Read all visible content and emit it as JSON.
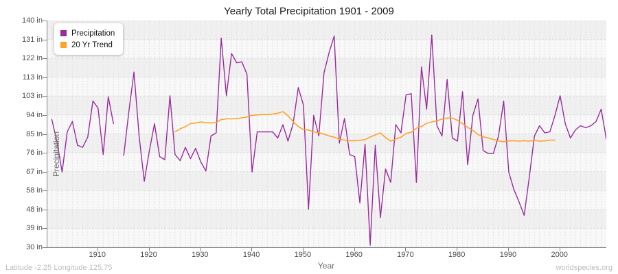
{
  "chart_data": {
    "type": "line",
    "title": "Yearly Total Precipitation 1901 - 2009",
    "xlabel": "Year",
    "ylabel": "Precipitation",
    "unit": "in",
    "x_start": 1901,
    "x_end": 2009,
    "ylim": [
      30,
      140
    ],
    "grid": true,
    "legend_position": "top-left",
    "band_colors": [
      "#f0f0f0",
      "#f8f8f8"
    ],
    "gridline_color": "#dddddd",
    "y_tick_labels": [
      "140 in",
      "131 in",
      "122 in",
      "113 in",
      "103 in",
      "94 in",
      "85 in",
      "76 in",
      "67 in",
      "58 in",
      "48 in",
      "39 in",
      "30 in"
    ],
    "x_tick_years": [
      1910,
      1920,
      1930,
      1940,
      1950,
      1960,
      1970,
      1980,
      1990,
      2000
    ],
    "series": [
      {
        "name": "Precipitation",
        "color": "#9a2a9e",
        "start_year": 1901,
        "values": [
          92,
          81,
          66.5,
          86,
          91,
          79.5,
          78.5,
          83.5,
          101,
          97.5,
          75,
          103,
          90,
          null,
          74.5,
          96,
          115,
          84,
          62,
          77,
          90,
          74,
          72.5,
          103.5,
          75,
          72,
          78.5,
          73,
          78,
          71.5,
          67,
          84,
          85.5,
          131.5,
          103.5,
          124,
          119.5,
          120,
          114,
          66.5,
          86,
          86,
          86,
          86,
          83,
          89.5,
          81.5,
          90,
          107.5,
          99,
          48.5,
          94,
          84,
          114.5,
          124.5,
          132.5,
          80.5,
          92.5,
          75,
          74,
          51.5,
          80,
          31,
          79.5,
          44.5,
          68,
          61.5,
          89.5,
          85.5,
          104,
          104.5,
          61.5,
          117.5,
          97,
          133,
          89,
          84,
          111.5,
          83,
          81.5,
          105.5,
          70,
          94,
          102,
          77,
          75.5,
          75.5,
          84,
          101,
          66.5,
          58,
          52,
          45.5,
          64,
          84,
          89,
          85.5,
          86,
          94,
          103.5,
          90,
          83,
          87,
          89,
          88,
          89,
          91,
          97,
          82.5
        ]
      },
      {
        "name": "20 Yr Trend",
        "color": "#ffa226",
        "start_year": 1925,
        "values": [
          86,
          87.5,
          88.5,
          90,
          90.3,
          90.8,
          90.5,
          90.3,
          90.5,
          92,
          92.3,
          92.3,
          92.4,
          92.8,
          93.2,
          94,
          94.2,
          94.4,
          94.5,
          94.6,
          95,
          95.8,
          93.8,
          91,
          88.6,
          87.1,
          86.9,
          86,
          85.6,
          84.9,
          84,
          83.4,
          82.4,
          82,
          81.7,
          81.7,
          81.9,
          82.2,
          83.5,
          84.5,
          85.5,
          83.2,
          81.5,
          82.5,
          83.4,
          85.2,
          85.8,
          87.8,
          88.6,
          90.2,
          90.8,
          91.3,
          92.2,
          92.7,
          92.7,
          91.6,
          90,
          88.2,
          86.7,
          84.7,
          83.6,
          83,
          82.3,
          81.6,
          81.2,
          81.6,
          81.7,
          81.5,
          81.7,
          81.5,
          81.8,
          81.5,
          81.6,
          82,
          82
        ]
      }
    ]
  },
  "footer": {
    "left": "Latitude -2.25 Longitude 125.75",
    "right": "worldspecies.org"
  }
}
